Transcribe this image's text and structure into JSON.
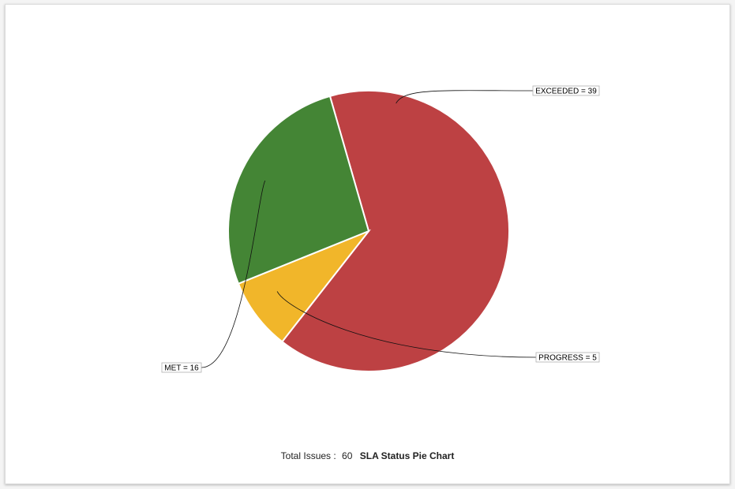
{
  "chart_data": {
    "type": "pie",
    "title": "SLA Status Pie Chart",
    "total_label": "Total Issues :",
    "total_value": 60,
    "slices": [
      {
        "name": "EXCEEDED",
        "value": 39,
        "label": "EXCEEDED = 39",
        "color": "#bd4143"
      },
      {
        "name": "PROGRESS",
        "value": 5,
        "label": "PROGRESS = 5",
        "color": "#f1b62a"
      },
      {
        "name": "MET",
        "value": 16,
        "label": "MET = 16",
        "color": "#448535"
      }
    ]
  }
}
